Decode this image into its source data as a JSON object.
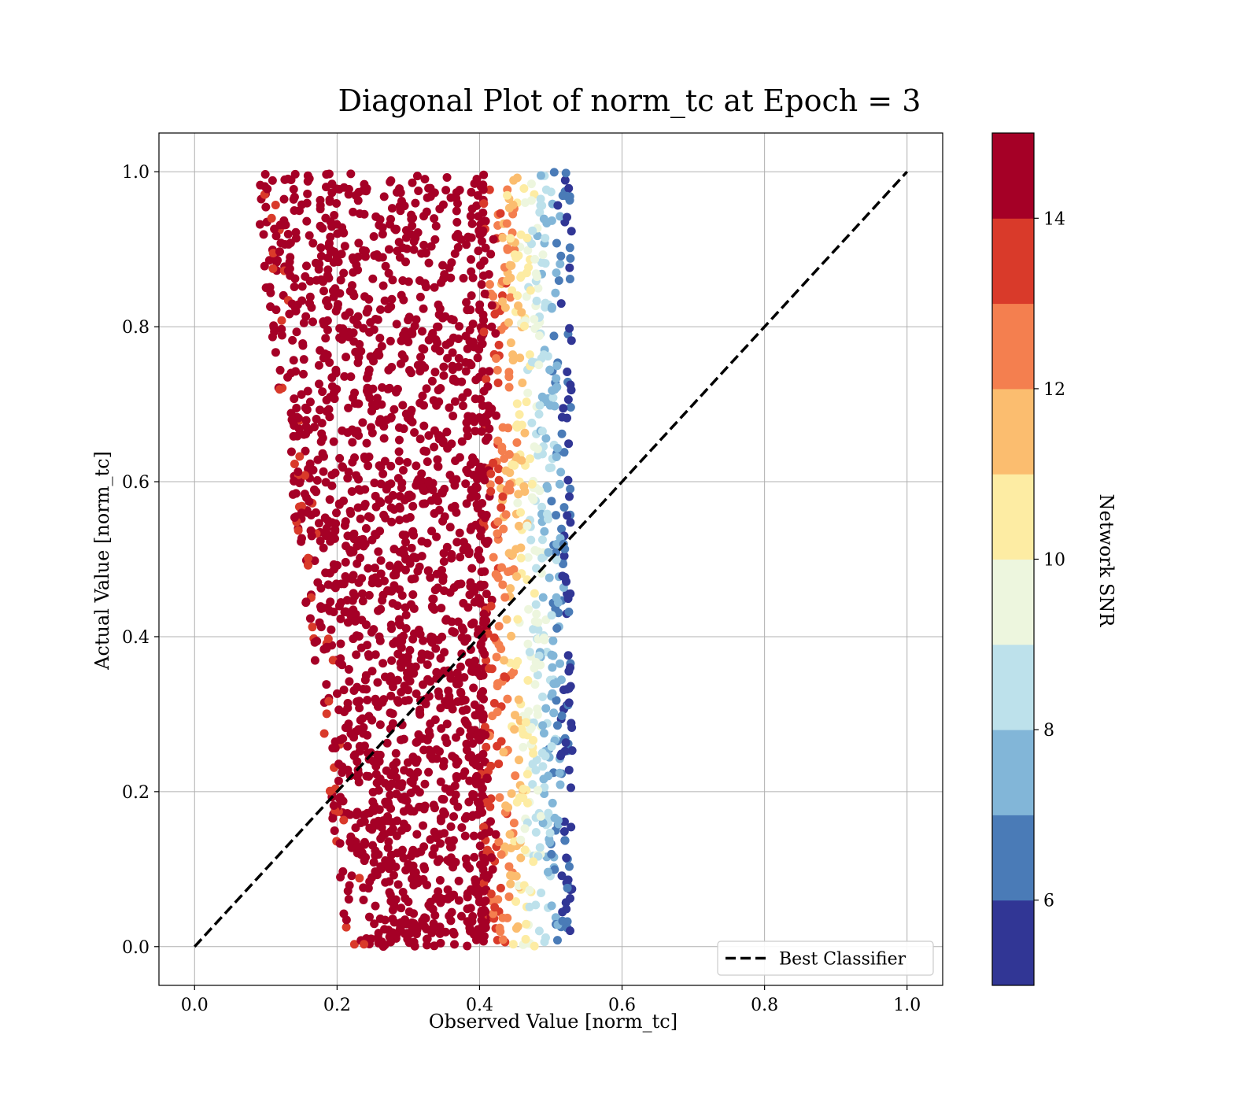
{
  "chart_data": {
    "type": "scatter",
    "title": "Diagonal Plot of norm_tc at Epoch = 3",
    "xlabel": "Observed Value [norm_tc]",
    "ylabel": "Actual Value [norm_tc]",
    "xlim": [
      -0.05,
      1.05
    ],
    "ylim": [
      -0.05,
      1.05
    ],
    "x_ticks": [
      0.0,
      0.2,
      0.4,
      0.6,
      0.8,
      1.0
    ],
    "y_ticks": [
      0.0,
      0.2,
      0.4,
      0.6,
      0.8,
      1.0
    ],
    "x_tick_labels": [
      "0.0",
      "0.2",
      "0.4",
      "0.6",
      "0.8",
      "1.0"
    ],
    "y_tick_labels": [
      "0.0",
      "0.2",
      "0.4",
      "0.6",
      "0.8",
      "1.0"
    ],
    "grid": true,
    "legend": {
      "position": "lower-right",
      "entries": [
        {
          "label": "Best Classifier",
          "style": "dashed",
          "color": "#000000"
        }
      ]
    },
    "reference_line": {
      "name": "Best Classifier",
      "x": [
        0.0,
        1.0
      ],
      "y": [
        0.0,
        1.0
      ],
      "style": "dashed",
      "color": "#000000"
    },
    "scatter_description_values": {
      "x_range_observed": [
        0.09,
        0.55
      ],
      "y_range_observed": [
        0.0,
        1.0
      ],
      "color_variable": "Network SNR"
    },
    "colorbar": {
      "label": "Network SNR",
      "range": [
        5,
        15
      ],
      "ticks": [
        6,
        8,
        10,
        12,
        14
      ],
      "tick_labels": [
        "6",
        "8",
        "10",
        "12",
        "14"
      ],
      "bins": [
        {
          "from": 5,
          "to": 6,
          "color": "#313695"
        },
        {
          "from": 6,
          "to": 7,
          "color": "#4a7bb7"
        },
        {
          "from": 7,
          "to": 8,
          "color": "#82b6d8"
        },
        {
          "from": 8,
          "to": 9,
          "color": "#bde1eb"
        },
        {
          "from": 9,
          "to": 10,
          "color": "#edf6de"
        },
        {
          "from": 10,
          "to": 11,
          "color": "#fdeca3"
        },
        {
          "from": 11,
          "to": 12,
          "color": "#fbbd6f"
        },
        {
          "from": 12,
          "to": 13,
          "color": "#f47f4f"
        },
        {
          "from": 13,
          "to": 14,
          "color": "#d93a2a"
        },
        {
          "from": 14,
          "to": 15,
          "color": "#a50026"
        }
      ]
    }
  }
}
